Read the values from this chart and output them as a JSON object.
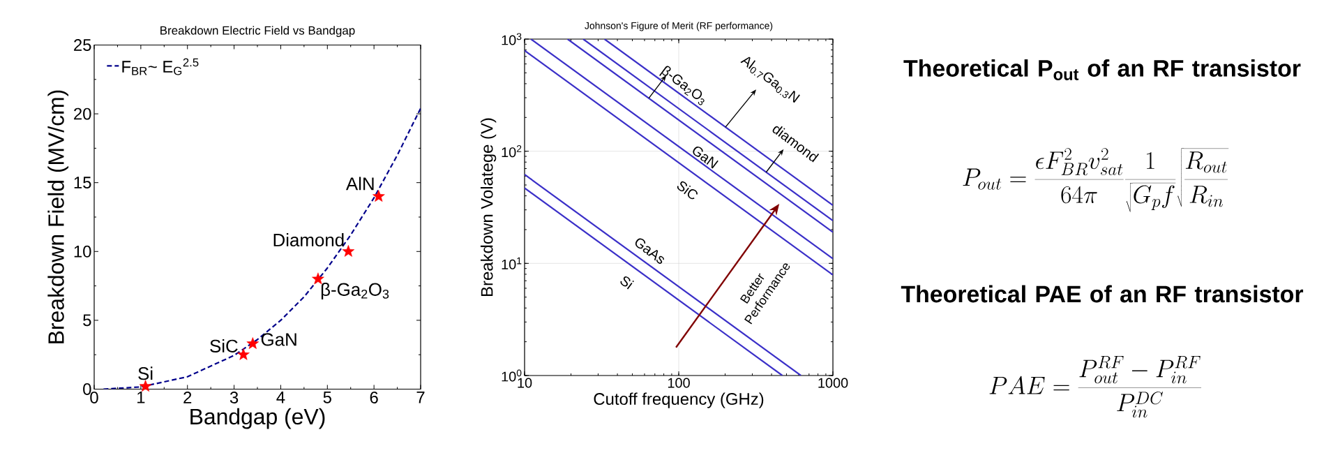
{
  "chart_data": [
    {
      "type": "scatter",
      "title": "Breakdown Electric Field vs Bandgap",
      "xlabel": "Bandgap (eV)",
      "ylabel": "Breakdown Field (MV/cm)",
      "xlim": [
        0,
        7
      ],
      "ylim": [
        0,
        25
      ],
      "xticks": [
        0,
        1,
        2,
        3,
        4,
        5,
        6,
        7
      ],
      "yticks": [
        0,
        5,
        10,
        15,
        20,
        25
      ],
      "legend": "top left",
      "series": [
        {
          "name": "F$_{BR}$~ E$_{G}$$^{2.5}$",
          "type": "line",
          "line_style": "dashed",
          "marker": "none",
          "color": "#00008b",
          "x": [
            0.2,
            1,
            2,
            3,
            3.5,
            4,
            4.5,
            5,
            5.5,
            6,
            6.5,
            7
          ],
          "values": [
            0,
            0.16,
            0.9,
            2.45,
            3.6,
            5.0,
            6.7,
            8.8,
            11.2,
            13.9,
            17.0,
            20.4
          ]
        },
        {
          "type": "scatter",
          "marker": "star",
          "color": "#ff0000",
          "x": [
            1.1,
            3.2,
            3.4,
            4.8,
            5.45,
            6.1
          ],
          "values": [
            0.2,
            2.5,
            3.3,
            8.0,
            10,
            14
          ]
        }
      ],
      "annotations": [
        {
          "text": "Si",
          "x": 1.1,
          "y": 0.2
        },
        {
          "text": "SiC",
          "x": 3.2,
          "y": 2.5
        },
        {
          "text": "GaN",
          "x": 3.4,
          "y": 3.3
        },
        {
          "text": "β-Ga$_{2}$O$_{3}$",
          "x": 4.8,
          "y": 8.0
        },
        {
          "text": "Diamond",
          "x": 5.45,
          "y": 10
        },
        {
          "text": "AlN",
          "x": 6.1,
          "y": 14
        }
      ]
    },
    {
      "type": "line",
      "title": "Johnson's Figure of Merit (RF performance)",
      "xlabel": "Cutoff frequency (GHz)",
      "ylabel": "Breakdown Volatege (V)",
      "log": "xy",
      "grid": true,
      "xlim": [
        10,
        1000
      ],
      "ylim": [
        1,
        1000
      ],
      "xticks": [
        10,
        100,
        1000
      ],
      "yticks": [
        {
          "value": 1,
          "label": "10$^{0}$"
        },
        {
          "value": 10,
          "label": "10$^{1}$"
        },
        {
          "value": 100,
          "label": "10$^{2}$"
        },
        {
          "value": 1000,
          "label": "10$^{3}$"
        }
      ],
      "series": [
        {
          "color": "#3a2fc8",
          "x": [
            10,
            470
          ],
          "values": [
            47,
            1
          ]
        },
        {
          "color": "#3a2fc8",
          "x": [
            10,
            620
          ],
          "values": [
            62,
            1
          ]
        },
        {
          "color": "#3a2fc8",
          "x": [
            10,
            1000
          ],
          "values": [
            790,
            7.9
          ]
        },
        {
          "color": "#3a2fc8",
          "x": [
            11,
            1000
          ],
          "values": [
            1000,
            11
          ]
        },
        {
          "color": "#3a2fc8",
          "x": [
            19,
            1000
          ],
          "values": [
            1000,
            19
          ]
        },
        {
          "color": "#3a2fc8",
          "x": [
            24,
            1000
          ],
          "values": [
            1000,
            24
          ]
        },
        {
          "color": "#3a2fc8",
          "x": [
            33,
            1000
          ],
          "values": [
            1000,
            33
          ]
        }
      ],
      "annotations": [
        "Si",
        "GaAs",
        "SiC",
        "GaN",
        {
          "text": "β-Ga$_{2}$O$_{3}$",
          "x": 64,
          "y": 297
        },
        {
          "text": "diamond",
          "x": 369,
          "y": 65
        },
        {
          "text": "Al$_{0.7}$Ga$_{0.3}$N",
          "x": 201,
          "y": 164
        },
        "Better Performance"
      ]
    },
    {
      "type": "other",
      "annotations": [
        "Theoretical P$_{out}$ of an RF transistor",
        "P_{out} = \\frac{\\epsilon F_{BR}^{2} v_{sat}^{2}}{64\\pi}\\frac{1}{\\sqrt{G_{p} f}}\\sqrt{\\frac{R_{out}}{R_{in}}}",
        "Theoretical PAE of an RF transistor",
        "PAE = \\frac{P_{out}^{RF} - P_{in}^{RF}}{P_{in}^{DC}}"
      ]
    }
  ]
}
